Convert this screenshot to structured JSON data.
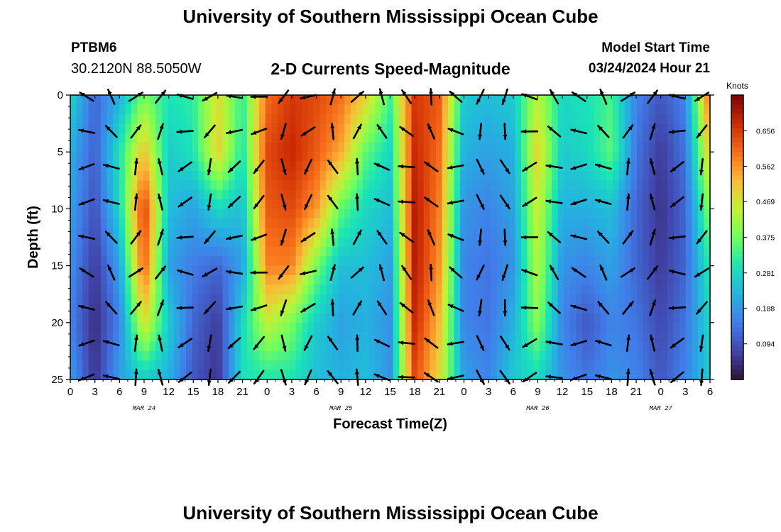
{
  "header": {
    "title": "University of Southern Mississippi Ocean Cube",
    "station_id": "PTBM6",
    "station_coords": "30.2120N  88.5050W",
    "plot_title": "2-D Currents Speed-Magnitude",
    "run_label": "Model Start Time",
    "run_value": "03/24/2024 Hour 21"
  },
  "footer": {
    "title": "University of Southern Mississippi Ocean Cube"
  },
  "chart_data": {
    "type": "heatmap",
    "xlabel": "Forecast Time(Z)",
    "ylabel": "Depth (ft)",
    "x_ticks": [
      "0",
      "3",
      "6",
      "9",
      "12",
      "15",
      "18",
      "21",
      "0",
      "3",
      "6",
      "9",
      "12",
      "15",
      "18",
      "21",
      "0",
      "3",
      "6",
      "9",
      "12",
      "15",
      "18",
      "21",
      "0",
      "3",
      "6"
    ],
    "day_labels": [
      "MAR 24",
      "MAR 25",
      "MAR 26",
      "MAR 27"
    ],
    "day_label_hours": [
      9,
      33,
      57,
      72
    ],
    "x_range_hours": [
      0,
      78
    ],
    "y_ticks": [
      0,
      5,
      10,
      15,
      20,
      25
    ],
    "ylim": [
      0,
      25
    ],
    "colorbar": {
      "unit": "Knots",
      "ticks": [
        0.656,
        0.562,
        0.469,
        0.375,
        0.281,
        0.188,
        0.094
      ],
      "range": [
        0.0,
        0.75
      ]
    },
    "depth_profile_speeds_knots": {
      "depths_ft": [
        0,
        5,
        10,
        15,
        20,
        25
      ],
      "columns": [
        {
          "hour": 0,
          "speeds": [
            0.28,
            0.22,
            0.2,
            0.18,
            0.16,
            0.2
          ]
        },
        {
          "hour": 3,
          "speeds": [
            0.12,
            0.11,
            0.09,
            0.06,
            0.04,
            0.05
          ]
        },
        {
          "hour": 6,
          "speeds": [
            0.22,
            0.3,
            0.28,
            0.2,
            0.16,
            0.2
          ]
        },
        {
          "hour": 9,
          "speeds": [
            0.38,
            0.52,
            0.66,
            0.62,
            0.48,
            0.26
          ]
        },
        {
          "hour": 12,
          "speeds": [
            0.3,
            0.26,
            0.24,
            0.2,
            0.26,
            0.22
          ]
        },
        {
          "hour": 15,
          "speeds": [
            0.32,
            0.3,
            0.2,
            0.15,
            0.12,
            0.1
          ]
        },
        {
          "hour": 18,
          "speeds": [
            0.48,
            0.5,
            0.28,
            0.12,
            0.06,
            0.05
          ]
        },
        {
          "hour": 21,
          "speeds": [
            0.32,
            0.3,
            0.24,
            0.2,
            0.28,
            0.3
          ]
        },
        {
          "hour": 24,
          "speeds": [
            0.6,
            0.64,
            0.62,
            0.58,
            0.45,
            0.3
          ]
        },
        {
          "hour": 27,
          "speeds": [
            0.66,
            0.68,
            0.64,
            0.58,
            0.38,
            0.3
          ]
        },
        {
          "hour": 30,
          "speeds": [
            0.64,
            0.62,
            0.56,
            0.38,
            0.26,
            0.24
          ]
        },
        {
          "hour": 33,
          "speeds": [
            0.6,
            0.54,
            0.36,
            0.24,
            0.2,
            0.22
          ]
        },
        {
          "hour": 36,
          "speeds": [
            0.5,
            0.36,
            0.28,
            0.24,
            0.22,
            0.24
          ]
        },
        {
          "hour": 39,
          "speeds": [
            0.34,
            0.28,
            0.24,
            0.2,
            0.18,
            0.18
          ]
        },
        {
          "hour": 42,
          "speeds": [
            0.66,
            0.68,
            0.7,
            0.7,
            0.68,
            0.64
          ]
        },
        {
          "hour": 45,
          "speeds": [
            0.62,
            0.6,
            0.58,
            0.56,
            0.52,
            0.48
          ]
        },
        {
          "hour": 48,
          "speeds": [
            0.26,
            0.22,
            0.18,
            0.16,
            0.16,
            0.2
          ]
        },
        {
          "hour": 51,
          "speeds": [
            0.24,
            0.2,
            0.16,
            0.14,
            0.14,
            0.16
          ]
        },
        {
          "hour": 54,
          "speeds": [
            0.26,
            0.22,
            0.2,
            0.18,
            0.22,
            0.26
          ]
        },
        {
          "hour": 57,
          "speeds": [
            0.44,
            0.5,
            0.46,
            0.44,
            0.4,
            0.28
          ]
        },
        {
          "hour": 60,
          "speeds": [
            0.28,
            0.26,
            0.22,
            0.18,
            0.16,
            0.18
          ]
        },
        {
          "hour": 63,
          "speeds": [
            0.3,
            0.28,
            0.22,
            0.16,
            0.1,
            0.14
          ]
        },
        {
          "hour": 66,
          "speeds": [
            0.34,
            0.36,
            0.24,
            0.2,
            0.16,
            0.18
          ]
        },
        {
          "hour": 69,
          "speeds": [
            0.16,
            0.14,
            0.12,
            0.12,
            0.14,
            0.16
          ]
        },
        {
          "hour": 72,
          "speeds": [
            0.1,
            0.06,
            0.05,
            0.06,
            0.08,
            0.1
          ]
        },
        {
          "hour": 75,
          "speeds": [
            0.16,
            0.14,
            0.12,
            0.12,
            0.14,
            0.16
          ]
        },
        {
          "hour": 78,
          "speeds": [
            0.62,
            0.52,
            0.4,
            0.32,
            0.28,
            0.26
          ]
        }
      ]
    }
  },
  "colors": {
    "arrow": "#000000",
    "axis": "#000000",
    "colormap": "turbo"
  }
}
